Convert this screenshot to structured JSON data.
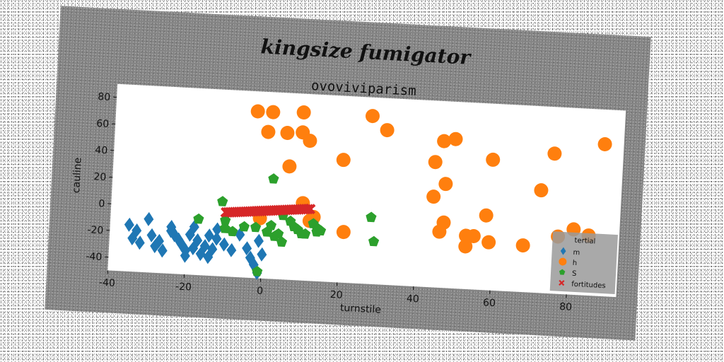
{
  "chart_data": {
    "type": "scatter",
    "suptitle": "kingsize fumigator",
    "title": "ovoviviparism",
    "xlabel": "turnstile",
    "ylabel": "cauline",
    "xlim": [
      -40,
      93
    ],
    "ylim": [
      -50,
      90
    ],
    "xticks": [
      -40,
      -20,
      0,
      20,
      40,
      60,
      80
    ],
    "yticks": [
      -40,
      -20,
      0,
      20,
      40,
      60,
      80
    ],
    "grid": false,
    "legend": {
      "title": "tertial",
      "placement": "bottom-right"
    },
    "series": [
      {
        "name": "m",
        "color": "#1f77b4",
        "marker": "diamond",
        "points": [
          [
            -35,
            -15
          ],
          [
            -33,
            -19
          ],
          [
            -34,
            -25
          ],
          [
            -32,
            -28
          ],
          [
            -30,
            -10
          ],
          [
            -29,
            -22
          ],
          [
            -28,
            -30
          ],
          [
            -27,
            -26
          ],
          [
            -26,
            -33
          ],
          [
            -24,
            -15
          ],
          [
            -24,
            -18
          ],
          [
            -23,
            -21
          ],
          [
            -22,
            -24
          ],
          [
            -21,
            -28
          ],
          [
            -20,
            -32
          ],
          [
            -20,
            -36
          ],
          [
            -19,
            -20
          ],
          [
            -18,
            -14
          ],
          [
            -18,
            -30
          ],
          [
            -17,
            -24
          ],
          [
            -16,
            -34
          ],
          [
            -15,
            -28
          ],
          [
            -14,
            -20
          ],
          [
            -14,
            -36
          ],
          [
            -13,
            -30
          ],
          [
            -12,
            -22
          ],
          [
            -12,
            -15
          ],
          [
            -10,
            -26
          ],
          [
            -8,
            -30
          ],
          [
            -6,
            -18
          ],
          [
            -4,
            -28
          ],
          [
            -3,
            -35
          ],
          [
            -2,
            -40
          ],
          [
            -1,
            -22
          ],
          [
            -1,
            -46
          ],
          [
            0,
            -32
          ]
        ]
      },
      {
        "name": "h",
        "color": "#ff7f0e",
        "marker": "circle",
        "points": [
          [
            -3,
            75
          ],
          [
            1,
            75
          ],
          [
            9,
            76
          ],
          [
            27,
            76
          ],
          [
            31,
            66
          ],
          [
            0,
            60
          ],
          [
            5,
            60
          ],
          [
            9,
            61
          ],
          [
            11,
            55
          ],
          [
            20,
            42
          ],
          [
            6,
            35
          ],
          [
            10,
            8
          ],
          [
            12,
            -5
          ],
          [
            -1,
            -5
          ],
          [
            13,
            -2
          ],
          [
            21,
            -12
          ],
          [
            46,
            60
          ],
          [
            49,
            62
          ],
          [
            59,
            48
          ],
          [
            75,
            55
          ],
          [
            88,
            64
          ],
          [
            44,
            44
          ],
          [
            47,
            28
          ],
          [
            72,
            27
          ],
          [
            44,
            18
          ],
          [
            58,
            6
          ],
          [
            47,
            -1
          ],
          [
            46,
            -8
          ],
          [
            53,
            -10
          ],
          [
            55,
            -10
          ],
          [
            53,
            -18
          ],
          [
            59,
            -14
          ],
          [
            68,
            -15
          ],
          [
            77,
            -7
          ],
          [
            81,
            -1
          ],
          [
            85,
            -5
          ]
        ]
      },
      {
        "name": "S",
        "color": "#2ca02c",
        "marker": "pentagon",
        "points": [
          [
            -17,
            -8
          ],
          [
            -11,
            6
          ],
          [
            -10,
            -8
          ],
          [
            -10,
            -14
          ],
          [
            -8,
            -16
          ],
          [
            -5,
            -12
          ],
          [
            -2,
            -12
          ],
          [
            1,
            -15
          ],
          [
            2,
            -10
          ],
          [
            3,
            -18
          ],
          [
            4,
            -16
          ],
          [
            5,
            -22
          ],
          [
            5,
            -2
          ],
          [
            7,
            -6
          ],
          [
            8,
            -10
          ],
          [
            9,
            -12
          ],
          [
            10,
            -15
          ],
          [
            11,
            -15
          ],
          [
            13,
            -7
          ],
          [
            14,
            -10
          ],
          [
            14,
            -13
          ],
          [
            15,
            -12
          ],
          [
            28,
            0
          ],
          [
            29,
            -18
          ],
          [
            -1,
            -45
          ],
          [
            2,
            25
          ]
        ]
      },
      {
        "name": "fortitudes",
        "color": "#d62728",
        "marker": "x",
        "segment": {
          "x": [
            -10,
            12
          ],
          "y": [
            -2,
            4
          ],
          "count": 40
        }
      }
    ]
  }
}
